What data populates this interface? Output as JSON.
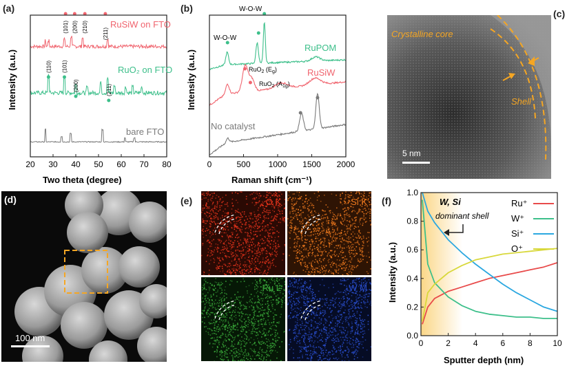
{
  "panels": {
    "a": {
      "label": "(a)",
      "xlabel": "Two theta (degree)",
      "ylabel": "Intensity (a.u.)",
      "xticks": [
        "20",
        "30",
        "40",
        "50",
        "60",
        "70",
        "80"
      ],
      "traces": [
        {
          "name": "RuSiW on FTO",
          "color": "#f0646e"
        },
        {
          "name": "RuO₂ on FTO",
          "color": "#3cbf8a"
        },
        {
          "name": "bare FTO",
          "color": "#7a7a7a"
        }
      ],
      "peak_labels_top": [
        "(101)",
        "(200)",
        "(210)",
        "(211)"
      ],
      "peak_labels_mid": [
        "(110)",
        "(101)",
        "(200)",
        "(211)"
      ]
    },
    "b": {
      "label": "(b)",
      "xlabel": "Raman shift (cm⁻¹)",
      "ylabel": "Intensity (a.u.)",
      "xticks": [
        "0",
        "500",
        "1000",
        "1500",
        "2000"
      ],
      "traces": [
        {
          "name": "RuPOM",
          "color": "#3cbf8a"
        },
        {
          "name": "RuSiW",
          "color": "#f0646e"
        },
        {
          "name": "No catalyst",
          "color": "#7a7a7a"
        }
      ],
      "annotations": [
        "W-O-W",
        "W-O-W",
        "RuO₂ (E_g)",
        "RuO₂ (A_1g)"
      ]
    },
    "c": {
      "label": "(c)",
      "core_text": "Crystalline core",
      "shell_text": "Shell",
      "scale": "5 nm"
    },
    "d": {
      "label": "(d)",
      "scale": "100 nm"
    },
    "e": {
      "label": "(e)",
      "maps": [
        {
          "name": "O K",
          "color": "#e8341c",
          "bg": "#2a0a04"
        },
        {
          "name": "Si K",
          "color": "#f07a1e",
          "bg": "#2e1404"
        },
        {
          "name": "Ru L",
          "color": "#3aaa3a",
          "bg": "#061806"
        },
        {
          "name": "W M",
          "color": "#2a4fd0",
          "bg": "#060c24"
        }
      ]
    },
    "f": {
      "label": "(f)",
      "xlabel": "Sputter depth (nm)",
      "ylabel": "Intensity (a.u.)",
      "annotation_title": "W, Si",
      "annotation_sub": "dominant shell",
      "xticks": [
        "0",
        "2",
        "4",
        "6",
        "8",
        "10"
      ],
      "yticks": [
        "0.0",
        "0.2",
        "0.4",
        "0.6",
        "0.8",
        "1.0"
      ],
      "legend": [
        {
          "name": "Ru⁺",
          "color": "#e84a4a"
        },
        {
          "name": "W⁺",
          "color": "#3cbf8a"
        },
        {
          "name": "Si⁺",
          "color": "#2aa7e0"
        },
        {
          "name": "O⁺",
          "color": "#d8d83a"
        }
      ]
    }
  },
  "chart_data": [
    {
      "type": "line",
      "xlabel": "Sputter depth (nm)",
      "ylabel": "Intensity (a.u.)",
      "xlim": [
        0,
        10
      ],
      "ylim": [
        0,
        1.0
      ],
      "x": [
        0.1,
        0.5,
        1,
        2,
        3,
        4,
        5,
        6,
        7,
        8,
        9,
        10
      ],
      "series": [
        {
          "name": "Ru⁺",
          "values": [
            0.08,
            0.2,
            0.26,
            0.31,
            0.34,
            0.37,
            0.4,
            0.42,
            0.44,
            0.46,
            0.48,
            0.51
          ]
        },
        {
          "name": "W⁺",
          "values": [
            0.95,
            0.5,
            0.37,
            0.27,
            0.21,
            0.17,
            0.15,
            0.14,
            0.13,
            0.13,
            0.12,
            0.12
          ]
        },
        {
          "name": "Si⁺",
          "values": [
            1.0,
            0.87,
            0.79,
            0.67,
            0.58,
            0.5,
            0.43,
            0.36,
            0.3,
            0.25,
            0.2,
            0.17
          ]
        },
        {
          "name": "O⁺",
          "values": [
            0.1,
            0.3,
            0.36,
            0.44,
            0.49,
            0.53,
            0.55,
            0.57,
            0.58,
            0.59,
            0.6,
            0.61
          ]
        }
      ]
    }
  ]
}
